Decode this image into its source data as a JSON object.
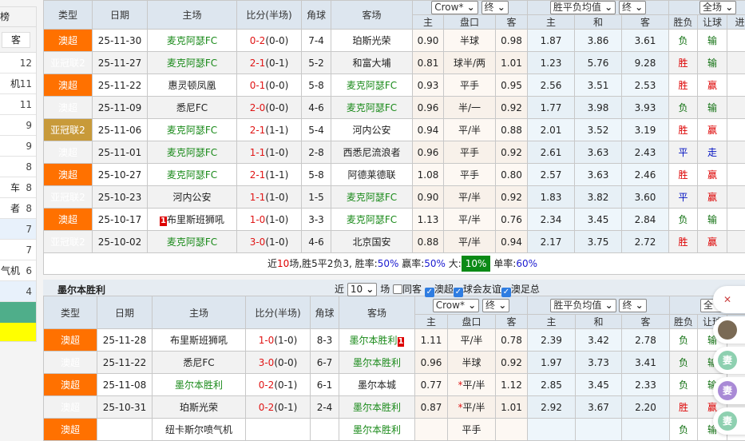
{
  "sidebar": {
    "header": "榜",
    "button": "客",
    "rows": [
      {
        "t": "",
        "n": "12"
      },
      {
        "t": "机",
        "n": "11"
      },
      {
        "t": "",
        "n": "11"
      },
      {
        "t": "",
        "n": "9"
      },
      {
        "t": "",
        "n": "9"
      },
      {
        "t": "",
        "n": "8"
      },
      {
        "t": "车",
        "n": "8"
      },
      {
        "t": "者",
        "n": "8"
      },
      {
        "t": "",
        "n": "7",
        "hl": true
      },
      {
        "t": "",
        "n": "7"
      },
      {
        "t": "气机",
        "n": "6"
      },
      {
        "t": "",
        "n": "4",
        "hl": true
      }
    ]
  },
  "headers": {
    "type": "类型",
    "date": "日期",
    "home": "主场",
    "score": "比分(半场)",
    "corner": "角球",
    "away": "客场",
    "h": "主",
    "hc": "盘口",
    "a": "客",
    "w": "主",
    "d": "和",
    "l": "客",
    "res": "胜负",
    "hres": "让球",
    "ou": "进球"
  },
  "selects": {
    "company": "Crow*",
    "stage1": "终",
    "avg": "胜平负均值",
    "stage2": "终",
    "scope": "全场",
    "scope2": "全"
  },
  "table1": [
    {
      "type": "澳超",
      "tc": "aus",
      "date": "25-11-30",
      "home": "麦克阿瑟FC",
      "hh": true,
      "s": "0-2",
      "ht": "(0-0)",
      "c": "7-4",
      "away": "珀斯光荣",
      "ah": false,
      "o": [
        "0.90",
        "半球",
        "0.98",
        "1.87",
        "3.86",
        "3.61"
      ],
      "res": "负",
      "hres": "输"
    },
    {
      "type": "亚冠联2",
      "tc": "acl",
      "date": "25-11-27",
      "home": "麦克阿瑟FC",
      "hh": true,
      "s": "2-1",
      "ht": "(0-1)",
      "c": "5-2",
      "away": "和富大埔",
      "o": [
        "0.81",
        "球半/两",
        "1.01",
        "1.23",
        "5.76",
        "9.28"
      ],
      "res": "胜",
      "hres": "输"
    },
    {
      "type": "澳超",
      "tc": "aus",
      "date": "25-11-22",
      "home": "惠灵顿凤凰",
      "s": "0-1",
      "ht": "(0-0)",
      "c": "5-8",
      "away": "麦克阿瑟FC",
      "ah": true,
      "o": [
        "0.93",
        "平手",
        "0.95",
        "2.56",
        "3.51",
        "2.53"
      ],
      "res": "胜",
      "hres": "赢"
    },
    {
      "type": "澳超",
      "tc": "aus",
      "date": "25-11-09",
      "home": "悉尼FC",
      "s": "2-0",
      "ht": "(0-0)",
      "c": "4-6",
      "away": "麦克阿瑟FC",
      "ah": true,
      "o": [
        "0.96",
        "半/一",
        "0.92",
        "1.77",
        "3.98",
        "3.93"
      ],
      "res": "负",
      "hres": "输"
    },
    {
      "type": "亚冠联2",
      "tc": "acl",
      "date": "25-11-06",
      "home": "麦克阿瑟FC",
      "hh": true,
      "s": "2-1",
      "ht": "(1-1)",
      "c": "5-4",
      "away": "河内公安",
      "o": [
        "0.94",
        "平/半",
        "0.88",
        "2.01",
        "3.52",
        "3.19"
      ],
      "res": "胜",
      "hres": "赢"
    },
    {
      "type": "澳超",
      "tc": "aus",
      "date": "25-11-01",
      "home": "麦克阿瑟FC",
      "hh": true,
      "s": "1-1",
      "ht": "(1-0)",
      "c": "2-8",
      "away": "西悉尼流浪者",
      "o": [
        "0.96",
        "平手",
        "0.92",
        "2.61",
        "3.63",
        "2.43"
      ],
      "res": "平",
      "hres": "走"
    },
    {
      "type": "澳超",
      "tc": "aus",
      "date": "25-10-27",
      "home": "麦克阿瑟FC",
      "hh": true,
      "s": "2-1",
      "ht": "(1-1)",
      "c": "5-8",
      "away": "阿德莱德联",
      "o": [
        "1.08",
        "平手",
        "0.80",
        "2.57",
        "3.63",
        "2.46"
      ],
      "res": "胜",
      "hres": "赢"
    },
    {
      "type": "亚冠联2",
      "tc": "acl",
      "date": "25-10-23",
      "home": "河内公安",
      "s": "1-1",
      "ht": "(1-0)",
      "c": "1-5",
      "away": "麦克阿瑟FC",
      "ah": true,
      "o": [
        "0.90",
        "平/半",
        "0.92",
        "1.83",
        "3.82",
        "3.60"
      ],
      "res": "平",
      "hres": "赢"
    },
    {
      "type": "澳超",
      "tc": "aus",
      "date": "25-10-17",
      "home": "布里斯班狮吼",
      "hrc": "1",
      "s": "1-0",
      "ht": "(1-0)",
      "c": "3-3",
      "away": "麦克阿瑟FC",
      "ah": true,
      "o": [
        "1.13",
        "平/半",
        "0.76",
        "2.34",
        "3.45",
        "2.84"
      ],
      "res": "负",
      "hres": "输"
    },
    {
      "type": "亚冠联2",
      "tc": "acl",
      "date": "25-10-02",
      "home": "麦克阿瑟FC",
      "hh": true,
      "s": "3-0",
      "ht": "(1-0)",
      "c": "4-6",
      "away": "北京国安",
      "o": [
        "0.88",
        "平/半",
        "0.94",
        "2.17",
        "3.75",
        "2.72"
      ],
      "res": "胜",
      "hres": "赢"
    }
  ],
  "summary": {
    "p1": "近",
    "n": "10",
    "p2": "场,胜5平2负3, 胜率:",
    "wr": "50%",
    "p3": " 赢率:",
    "hr": "50%",
    "p4": " 大:",
    "big": "10%",
    "p5": " 单率:",
    "odd": "60%"
  },
  "section2": {
    "title": "墨尔本胜利",
    "near": "近",
    "count": "10",
    "unit": "场",
    "same": "同客",
    "f1": "澳超",
    "f2": "球会友谊",
    "f3": "澳足总"
  },
  "table2": [
    {
      "type": "澳超",
      "tc": "aus",
      "date": "25-11-28",
      "home": "布里斯班狮吼",
      "s": "1-0",
      "ht": "(1-0)",
      "c": "8-3",
      "away": "墨尔本胜利",
      "ah": true,
      "arc": "1",
      "o": [
        "1.11",
        "平/半",
        "0.78",
        "2.39",
        "3.42",
        "2.78"
      ],
      "res": "负",
      "hres": "输"
    },
    {
      "type": "澳超",
      "tc": "aus",
      "date": "25-11-22",
      "home": "悉尼FC",
      "s": "3-0",
      "ht": "(0-0)",
      "c": "6-7",
      "away": "墨尔本胜利",
      "ah": true,
      "o": [
        "0.96",
        "半球",
        "0.92",
        "1.97",
        "3.73",
        "3.41"
      ],
      "res": "负",
      "hres": "输"
    },
    {
      "type": "澳超",
      "tc": "aus",
      "date": "25-11-08",
      "home": "墨尔本胜利",
      "hh": true,
      "s": "0-2",
      "ht": "(0-1)",
      "c": "6-1",
      "away": "墨尔本城",
      "star": true,
      "o": [
        "0.77",
        "平/半",
        "1.12",
        "2.85",
        "3.45",
        "2.33"
      ],
      "res": "负",
      "hres": "输"
    },
    {
      "type": "澳超",
      "tc": "aus",
      "date": "25-10-31",
      "home": "珀斯光荣",
      "s": "0-2",
      "ht": "(0-1)",
      "c": "2-4",
      "away": "墨尔本胜利",
      "ah": true,
      "star": true,
      "o": [
        "0.87",
        "平/半",
        "1.01",
        "2.92",
        "3.67",
        "2.20"
      ],
      "res": "胜",
      "hres": "赢"
    },
    {
      "type": "澳超",
      "tc": "aus",
      "date": "",
      "home": "纽卡斯尔喷气机",
      "s": "",
      "ht": "",
      "c": "",
      "away": "墨尔本胜利",
      "ah": true,
      "o": [
        "",
        "平手",
        "",
        "",
        "",
        ""
      ],
      "res": "负",
      "hres": "输"
    }
  ],
  "float": [
    {
      "label": "✕",
      "color": "#ffffff"
    },
    {
      "label": "",
      "color": "#7a6a55"
    },
    {
      "label": "妻",
      "color": "#8ed0b0"
    },
    {
      "label": "妻",
      "color": "#a98ad6"
    },
    {
      "label": "妻",
      "color": "#8ed0b0"
    }
  ],
  "colors": {
    "aus": "#ff7100",
    "acl": "#c89a3a",
    "win": "#dd0000",
    "lose": "#107010",
    "draw": "#0010c0",
    "highlight_team": "#1a8a1a"
  }
}
